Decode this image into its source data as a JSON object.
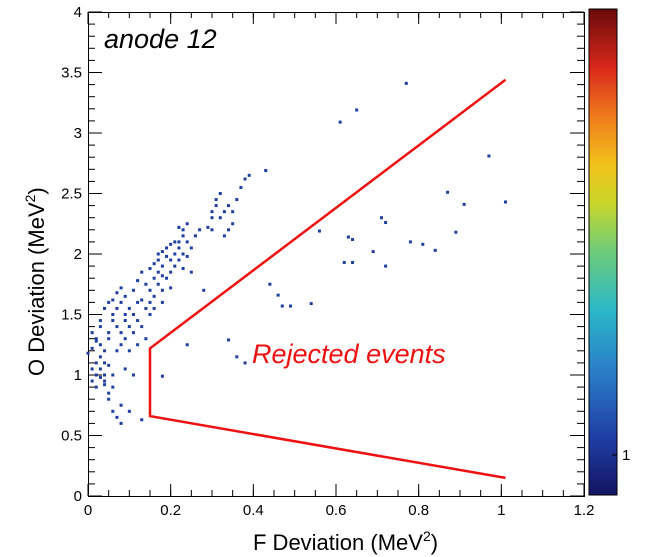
{
  "chart_data": {
    "type": "scatter",
    "title": "anode 12",
    "xlabel": "F Deviation (MeV",
    "xlabel_sup": "2",
    "xlabel_end": ")",
    "ylabel": "O Deviation (MeV",
    "ylabel_sup": "2",
    "ylabel_end": ")",
    "xlim": [
      0,
      1.2
    ],
    "ylim": [
      0,
      4
    ],
    "x_ticks": [
      "0",
      "0.2",
      "0.4",
      "0.6",
      "0.8",
      "1",
      "1.2"
    ],
    "y_ticks": [
      "0",
      "0.5",
      "1",
      "1.5",
      "2",
      "2.5",
      "3",
      "3.5",
      "4"
    ],
    "colorbar_tick": "1",
    "marker_color": "#1f3fa0",
    "annotation": {
      "text": "Rejected events",
      "color": "#ee1111"
    },
    "cut_polygon": [
      [
        1.01,
        3.44
      ],
      [
        0.15,
        1.22
      ],
      [
        0.15,
        0.66
      ],
      [
        1.01,
        0.15
      ]
    ],
    "cut_color": "#ee1111",
    "points": [
      [
        0.0,
        1.18
      ],
      [
        0.01,
        1.22
      ],
      [
        0.01,
        1.05
      ],
      [
        0.01,
        0.95
      ],
      [
        0.01,
        1.35
      ],
      [
        0.02,
        1.28
      ],
      [
        0.02,
        1.1
      ],
      [
        0.02,
        0.9
      ],
      [
        0.02,
        1.0
      ],
      [
        0.02,
        1.3
      ],
      [
        0.03,
        1.45
      ],
      [
        0.03,
        1.15
      ],
      [
        0.03,
        1.05
      ],
      [
        0.03,
        0.98
      ],
      [
        0.03,
        1.25
      ],
      [
        0.03,
        1.4
      ],
      [
        0.04,
        1.55
      ],
      [
        0.04,
        1.0
      ],
      [
        0.04,
        0.95
      ],
      [
        0.04,
        1.1
      ],
      [
        0.04,
        1.2
      ],
      [
        0.04,
        0.92
      ],
      [
        0.05,
        1.6
      ],
      [
        0.05,
        1.3
      ],
      [
        0.05,
        1.08
      ],
      [
        0.05,
        0.85
      ],
      [
        0.05,
        1.35
      ],
      [
        0.05,
        0.8
      ],
      [
        0.06,
        1.0
      ],
      [
        0.06,
        1.45
      ],
      [
        0.06,
        1.62
      ],
      [
        0.06,
        1.5
      ],
      [
        0.06,
        0.9
      ],
      [
        0.06,
        0.7
      ],
      [
        0.07,
        1.55
      ],
      [
        0.07,
        1.68
      ],
      [
        0.07,
        1.4
      ],
      [
        0.07,
        1.2
      ],
      [
        0.07,
        0.65
      ],
      [
        0.08,
        1.72
      ],
      [
        0.08,
        1.6
      ],
      [
        0.08,
        1.25
      ],
      [
        0.08,
        1.35
      ],
      [
        0.08,
        0.75
      ],
      [
        0.08,
        0.6
      ],
      [
        0.09,
        1.65
      ],
      [
        0.09,
        1.5
      ],
      [
        0.09,
        1.45
      ],
      [
        0.09,
        1.3
      ],
      [
        0.09,
        1.05
      ],
      [
        0.1,
        1.55
      ],
      [
        0.1,
        1.4
      ],
      [
        0.1,
        1.2
      ],
      [
        0.1,
        0.7
      ],
      [
        0.11,
        1.7
      ],
      [
        0.11,
        1.5
      ],
      [
        0.11,
        1.35
      ],
      [
        0.11,
        1.0
      ],
      [
        0.12,
        1.78
      ],
      [
        0.12,
        1.6
      ],
      [
        0.12,
        1.45
      ],
      [
        0.12,
        1.25
      ],
      [
        0.13,
        1.85
      ],
      [
        0.13,
        1.62
      ],
      [
        0.13,
        1.4
      ],
      [
        0.13,
        0.63
      ],
      [
        0.14,
        1.75
      ],
      [
        0.14,
        1.55
      ],
      [
        0.14,
        1.3
      ],
      [
        0.15,
        1.88
      ],
      [
        0.15,
        1.7
      ],
      [
        0.15,
        1.6
      ],
      [
        0.15,
        1.5
      ],
      [
        0.16,
        1.92
      ],
      [
        0.16,
        1.8
      ],
      [
        0.16,
        1.65
      ],
      [
        0.16,
        1.55
      ],
      [
        0.17,
        1.95
      ],
      [
        0.17,
        2.0
      ],
      [
        0.17,
        1.85
      ],
      [
        0.17,
        1.75
      ],
      [
        0.18,
        2.02
      ],
      [
        0.18,
        1.9
      ],
      [
        0.18,
        1.82
      ],
      [
        0.18,
        1.7
      ],
      [
        0.18,
        1.6
      ],
      [
        0.19,
        2.05
      ],
      [
        0.19,
        1.98
      ],
      [
        0.19,
        1.8
      ],
      [
        0.2,
        2.08
      ],
      [
        0.2,
        1.95
      ],
      [
        0.2,
        1.85
      ],
      [
        0.2,
        1.72
      ],
      [
        0.21,
        2.1
      ],
      [
        0.21,
        2.0
      ],
      [
        0.21,
        1.9
      ],
      [
        0.22,
        2.22
      ],
      [
        0.22,
        2.1
      ],
      [
        0.22,
        2.05
      ],
      [
        0.22,
        1.95
      ],
      [
        0.23,
        2.2
      ],
      [
        0.23,
        2.15
      ],
      [
        0.23,
        2.0
      ],
      [
        0.23,
        1.88
      ],
      [
        0.24,
        2.25
      ],
      [
        0.24,
        2.1
      ],
      [
        0.24,
        1.98
      ],
      [
        0.25,
        2.05
      ],
      [
        0.25,
        1.85
      ],
      [
        0.26,
        2.15
      ],
      [
        0.27,
        2.2
      ],
      [
        0.28,
        1.7
      ],
      [
        0.29,
        2.22
      ],
      [
        0.3,
        2.3
      ],
      [
        0.3,
        2.35
      ],
      [
        0.3,
        2.2
      ],
      [
        0.31,
        2.45
      ],
      [
        0.31,
        2.4
      ],
      [
        0.32,
        2.5
      ],
      [
        0.32,
        2.3
      ],
      [
        0.33,
        2.35
      ],
      [
        0.33,
        2.15
      ],
      [
        0.34,
        2.4
      ],
      [
        0.34,
        2.2
      ],
      [
        0.35,
        2.35
      ],
      [
        0.35,
        2.25
      ],
      [
        0.36,
        2.45
      ],
      [
        0.37,
        2.55
      ],
      [
        0.38,
        2.62
      ],
      [
        0.39,
        2.65
      ],
      [
        0.34,
        1.29
      ],
      [
        0.36,
        1.15
      ],
      [
        0.38,
        1.1
      ],
      [
        0.24,
        1.25
      ],
      [
        0.18,
        0.99
      ],
      [
        0.44,
        1.75
      ],
      [
        0.46,
        1.66
      ],
      [
        0.47,
        1.57
      ],
      [
        0.49,
        1.57
      ],
      [
        0.54,
        1.59
      ],
      [
        0.43,
        2.69
      ],
      [
        0.56,
        2.19
      ],
      [
        0.61,
        3.09
      ],
      [
        0.62,
        1.93
      ],
      [
        0.63,
        2.14
      ],
      [
        0.64,
        2.12
      ],
      [
        0.64,
        1.93
      ],
      [
        0.65,
        3.19
      ],
      [
        0.69,
        2.02
      ],
      [
        0.71,
        2.3
      ],
      [
        0.72,
        1.9
      ],
      [
        0.72,
        2.26
      ],
      [
        0.77,
        3.41
      ],
      [
        0.78,
        2.1
      ],
      [
        0.81,
        2.08
      ],
      [
        0.84,
        2.03
      ],
      [
        0.87,
        2.51
      ],
      [
        0.89,
        2.18
      ],
      [
        0.91,
        2.41
      ],
      [
        0.97,
        2.81
      ],
      [
        1.01,
        2.43
      ]
    ]
  }
}
